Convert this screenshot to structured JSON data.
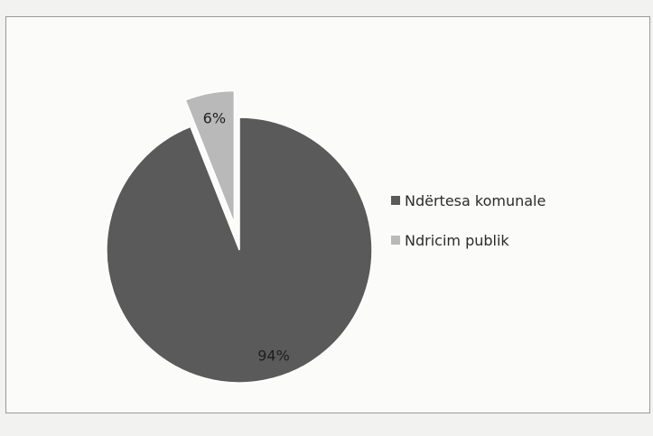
{
  "chart_data": {
    "type": "pie",
    "categories": [
      "Ndërtesa komunale",
      "Ndricim publik"
    ],
    "values": [
      94,
      6
    ],
    "labels": [
      "94%",
      "6%"
    ],
    "exploded": [
      false,
      true
    ],
    "colors": [
      "#5a5a5a",
      "#b9b9b9"
    ],
    "legend_position": "right"
  }
}
